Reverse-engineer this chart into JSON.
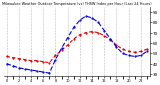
{
  "title": "Milwaukee Weather Outdoor Temperature (vs) THSW Index per Hour (Last 24 Hours)",
  "hours": [
    0,
    1,
    2,
    3,
    4,
    5,
    6,
    7,
    8,
    9,
    10,
    11,
    12,
    13,
    14,
    15,
    16,
    17,
    18,
    19,
    20,
    21,
    22,
    23
  ],
  "temp": [
    47,
    46,
    45,
    44,
    43,
    43,
    42,
    41,
    48,
    53,
    58,
    64,
    68,
    70,
    71,
    70,
    67,
    63,
    58,
    54,
    52,
    51,
    52,
    54
  ],
  "thsw": [
    40,
    38,
    36,
    35,
    34,
    33,
    32,
    31,
    44,
    55,
    65,
    75,
    82,
    86,
    84,
    80,
    72,
    64,
    56,
    50,
    48,
    47,
    48,
    52
  ],
  "temp_color": "#dd0000",
  "thsw_color": "#0000dd",
  "bg_color": "#ffffff",
  "grid_color": "#aaaaaa",
  "ylim_min": 28,
  "ylim_max": 95,
  "yticks": [
    30,
    40,
    50,
    60,
    70,
    80,
    90
  ],
  "ytick_labels": [
    "30",
    "40",
    "50",
    "60",
    "70",
    "80",
    "90"
  ],
  "xticks": [
    0,
    2,
    4,
    6,
    8,
    10,
    12,
    14,
    16,
    18,
    20,
    22
  ],
  "xtick_labels": [
    "0",
    "2",
    "4",
    "6",
    "8",
    "10",
    "12",
    "14",
    "16",
    "18",
    "20",
    "22"
  ]
}
